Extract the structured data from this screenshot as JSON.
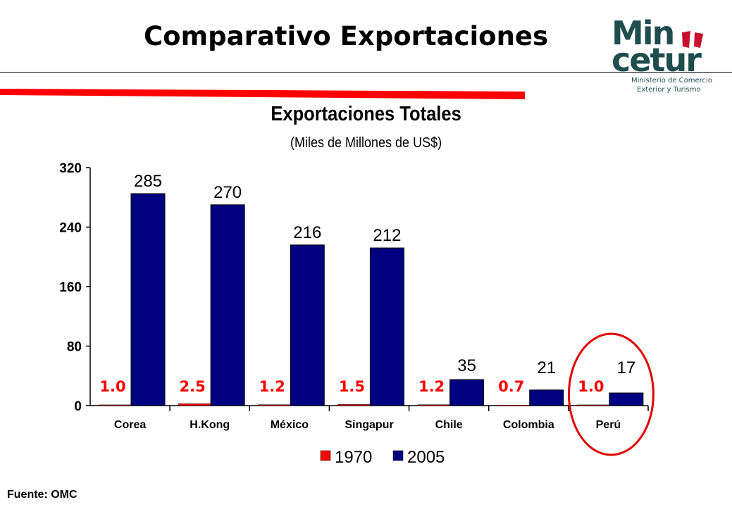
{
  "header": {
    "title": "Comparativo Exportaciones",
    "logo": {
      "wordmark": "Min\ncetur",
      "line1": "Ministerio de Comercio",
      "line2": "Exterior y Turismo",
      "color": "#1f4d4d",
      "accent": "#c8102e"
    }
  },
  "chart_data": {
    "type": "bar",
    "title": "Exportaciones Totales",
    "subtitle": "(Miles de Millones de US$)",
    "categories": [
      "Corea",
      "H.Kong",
      "México",
      "Singapur",
      "Chile",
      "Colombia",
      "Perú"
    ],
    "series": [
      {
        "name": "1970",
        "color": "#ff0000",
        "values": [
          1.0,
          2.5,
          1.2,
          1.5,
          1.2,
          0.7,
          1.0
        ],
        "labels": [
          "1.0",
          "2.5",
          "1.2",
          "1.5",
          "1.2",
          "0.7",
          "1.0"
        ]
      },
      {
        "name": "2005",
        "color": "#000080",
        "values": [
          285,
          270,
          216,
          212,
          35,
          21,
          17
        ],
        "labels": [
          "285",
          "270",
          "216",
          "212",
          "35",
          "21",
          "17"
        ]
      }
    ],
    "ylim": [
      0,
      320
    ],
    "yticks": [
      0,
      80,
      160,
      240,
      320
    ],
    "xlabel": "",
    "ylabel": "",
    "grid": false,
    "legend_position": "bottom-center",
    "highlight": {
      "category": "Perú",
      "shape": "ellipse",
      "color": "#e00000"
    }
  },
  "footer": {
    "source": "Fuente: OMC"
  }
}
